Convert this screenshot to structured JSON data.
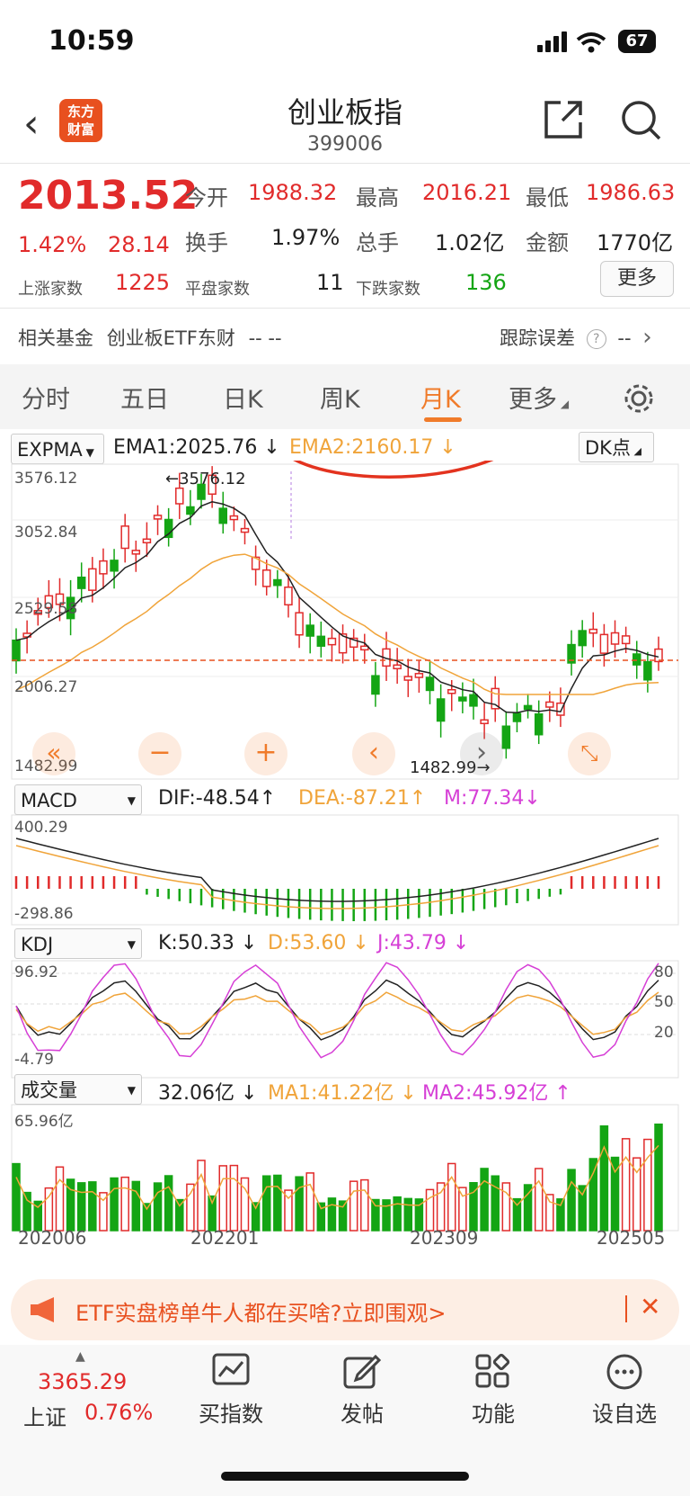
{
  "status": {
    "time": "10:59",
    "battery": "67"
  },
  "header": {
    "title": "创业板指",
    "code": "399006",
    "logo_line1": "东方",
    "logo_line2": "财富"
  },
  "quote": {
    "price": "2013.52",
    "change_pct": "1.42%",
    "change": "28.14",
    "open_label": "今开",
    "open": "1988.32",
    "high_label": "最高",
    "high": "2016.21",
    "low_label": "最低",
    "low": "1986.63",
    "turnover_label": "换手",
    "turnover": "1.97%",
    "volume_label": "总手",
    "volume": "1.02亿",
    "amount_label": "金额",
    "amount": "1770亿",
    "up_label": "上涨家数",
    "up": "1225",
    "flat_label": "平盘家数",
    "flat": "11",
    "down_label": "下跌家数",
    "down": "136",
    "more": "更多"
  },
  "fund_row": {
    "label": "相关基金",
    "fund": "创业板ETF东财",
    "dash1": "-- --",
    "track_label": "跟踪误差",
    "dash2": "--"
  },
  "tabs": [
    "分时",
    "五日",
    "日K",
    "周K",
    "月K",
    "更多"
  ],
  "main_chart": {
    "indicator": "EXPMA",
    "ema1": "EMA1:2025.76",
    "ema2": "EMA2:2160.17",
    "dk": "DK点",
    "y_top": "3576.12",
    "y_2": "3052.84",
    "y_3": "2529.58",
    "y_4": "2006.27",
    "y_bottom": "1482.99",
    "high_marker": "3576.12",
    "low_marker": "1482.99",
    "annotation_color": "#e3331f"
  },
  "macd": {
    "name": "MACD",
    "dif": "DIF:-48.54",
    "dea": "DEA:-87.21",
    "m": "M:77.34",
    "y_top": "400.29",
    "y_bottom": "-298.86"
  },
  "kdj": {
    "name": "KDJ",
    "k": "K:50.33",
    "d": "D:53.60",
    "j": "J:43.79",
    "y_top": "96.92",
    "y_bottom": "-4.79",
    "r80": "80",
    "r50": "50",
    "r20": "20"
  },
  "volume": {
    "name": "成交量",
    "vol": "32.06亿",
    "ma1": "MA1:41.22亿",
    "ma2": "MA2:45.92亿",
    "y_top": "65.96亿"
  },
  "x_axis": [
    "202006",
    "202201",
    "202309",
    "202505"
  ],
  "ad": {
    "text": "ETF实盘榜单牛人都在买啥?立即围观>"
  },
  "bottom_nav": {
    "index_value": "3365.29",
    "index_name": "上证",
    "index_pct": "0.76%",
    "items": [
      "买指数",
      "发帖",
      "功能",
      "设自选"
    ]
  },
  "colors": {
    "up": "#e12b2b",
    "down": "#14a514",
    "ema2": "#f0a43a",
    "accent": "#f07b2a"
  }
}
